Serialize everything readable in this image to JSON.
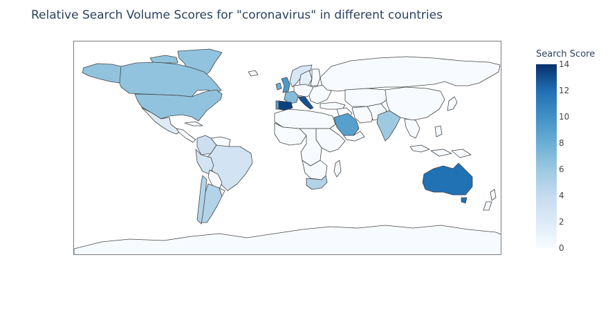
{
  "title": "Relative Search Volume Scores for \"coronavirus\" in different countries",
  "colorbar": {
    "title": "Search Score",
    "range": [
      0,
      14
    ],
    "ticks": [
      "0",
      "2",
      "4",
      "6",
      "8",
      "10",
      "12",
      "14"
    ],
    "colorscale": [
      "#f7fbff",
      "#deebf7",
      "#c6dbef",
      "#9ecae1",
      "#6baed6",
      "#4292c6",
      "#2171b5",
      "#08306b"
    ]
  },
  "map_data": {
    "projection": "equirectangular",
    "default_color": "#f7fbff",
    "approximate_scores": {
      "United States": 6.5,
      "Canada": 6.5,
      "Greenland": 6.5,
      "Australia": 12,
      "Spain": 13.5,
      "Italy": 13,
      "Portugal": 9,
      "United Kingdom": 9.5,
      "Ireland": 8,
      "France": 7,
      "Saudi Arabia": 9,
      "India": 6,
      "South Africa": 5,
      "Argentina": 5,
      "Chile": 5,
      "Brazil": 3,
      "Colombia": 3.5,
      "Peru": 3,
      "Mexico": 2,
      "Norway": 2.5,
      "Sweden": 1.5
    }
  }
}
